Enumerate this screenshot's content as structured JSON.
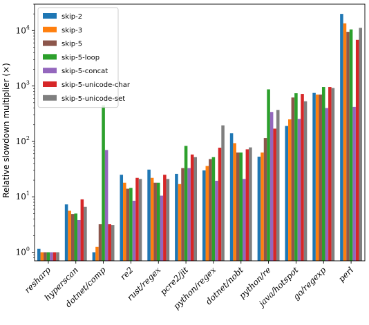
{
  "chart_data": {
    "type": "bar",
    "title": "",
    "xlabel": "",
    "ylabel": "Relative slowdown multiplier (×)",
    "yscale": "log",
    "ylim": [
      0.7,
      30000
    ],
    "yticks": [
      {
        "value": 1,
        "label": "10",
        "exp": "0"
      },
      {
        "value": 10,
        "label": "10",
        "exp": "1"
      },
      {
        "value": 100,
        "label": "10",
        "exp": "2"
      },
      {
        "value": 1000,
        "label": "10",
        "exp": "3"
      },
      {
        "value": 10000,
        "label": "10",
        "exp": "4"
      }
    ],
    "grid": false,
    "legend_position": "top-left",
    "categories": [
      "resharp",
      "hyperscan",
      "dotnet/comp",
      "re2",
      "rust/regex",
      "pcre2/jit",
      "python/regex",
      "dotnet/nobt",
      "python/re",
      "java/hotspot",
      "go/regexp",
      "perl"
    ],
    "series": [
      {
        "name": "skip-2",
        "color": "#1f77b4",
        "values": [
          1.15,
          7.3,
          1.0,
          25,
          31,
          26,
          30,
          140,
          53,
          190,
          750,
          20000
        ]
      },
      {
        "name": "skip-3",
        "color": "#ff7f0e",
        "values": [
          1.0,
          5.6,
          1.25,
          18,
          22,
          17,
          36,
          93,
          63,
          250,
          700,
          13500
        ]
      },
      {
        "name": "skip-5",
        "color": "#8c564b",
        "values": [
          1.0,
          4.9,
          3.2,
          14,
          18,
          33,
          48,
          63,
          115,
          620,
          700,
          9500
        ]
      },
      {
        "name": "skip-5-loop",
        "color": "#2ca02c",
        "values": [
          1.0,
          5.0,
          450,
          14.5,
          18,
          83,
          52,
          63,
          870,
          740,
          960,
          10500
        ]
      },
      {
        "name": "skip-5-concat",
        "color": "#9467bd",
        "values": [
          1.0,
          3.8,
          70,
          8.5,
          10.5,
          33,
          19.5,
          21,
          340,
          255,
          400,
          420
        ]
      },
      {
        "name": "skip-5-unicode-char",
        "color": "#d62728",
        "values": [
          1.0,
          9.0,
          3.2,
          22,
          25,
          58,
          77,
          72,
          170,
          720,
          960,
          6800
        ]
      },
      {
        "name": "skip-5-unicode-set",
        "color": "#7f7f7f",
        "values": [
          1.0,
          6.6,
          3.1,
          21,
          21,
          52,
          195,
          78,
          370,
          530,
          920,
          11200
        ]
      }
    ]
  }
}
